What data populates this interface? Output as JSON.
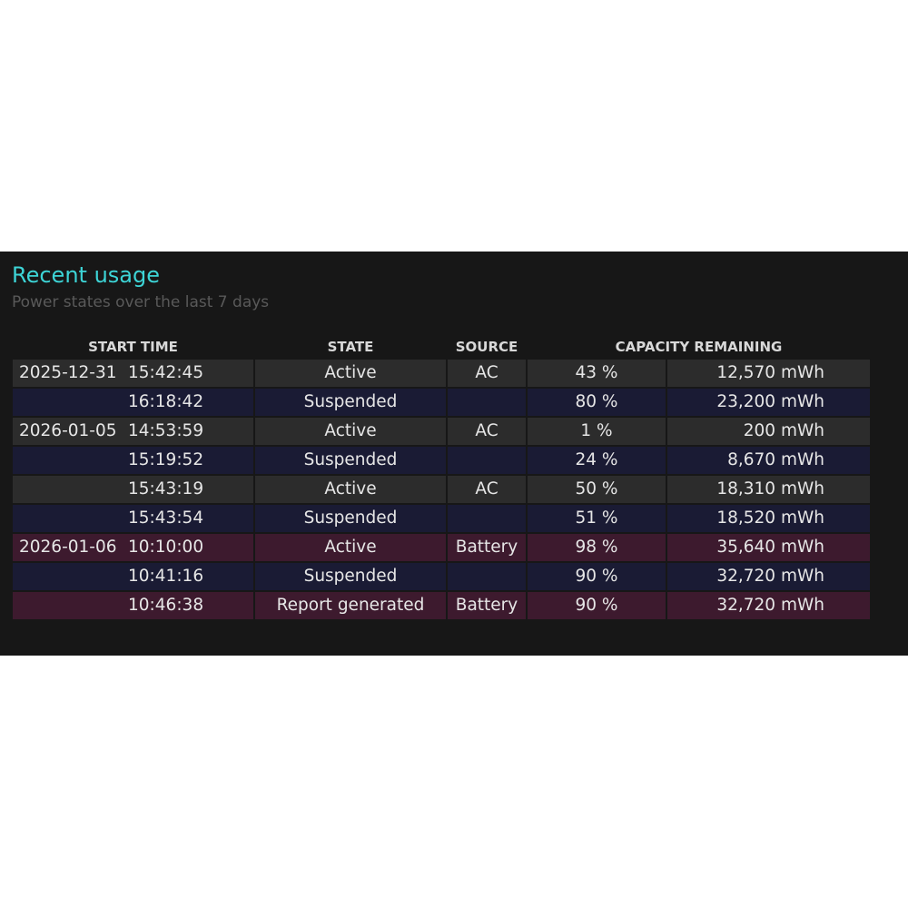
{
  "section": {
    "title": "Recent usage",
    "subtitle": "Power states over the last 7 days"
  },
  "table": {
    "headers": [
      "START TIME",
      "STATE",
      "SOURCE",
      "CAPACITY REMAINING"
    ],
    "row_colors": {
      "ac": "#2c2c2c",
      "suspended": "#1a1b34",
      "battery": "#3d1a2e"
    },
    "rows": [
      {
        "date": "2025-12-31",
        "time": "15:42:45",
        "state": "Active",
        "source": "AC",
        "percent": "43 %",
        "capacity": "12,570 mWh",
        "kind": "ac"
      },
      {
        "date": "",
        "time": "16:18:42",
        "state": "Suspended",
        "source": "",
        "percent": "80 %",
        "capacity": "23,200 mWh",
        "kind": "suspended"
      },
      {
        "date": "2026-01-05",
        "time": "14:53:59",
        "state": "Active",
        "source": "AC",
        "percent": "1 %",
        "capacity": "200 mWh",
        "kind": "ac"
      },
      {
        "date": "",
        "time": "15:19:52",
        "state": "Suspended",
        "source": "",
        "percent": "24 %",
        "capacity": "8,670 mWh",
        "kind": "suspended"
      },
      {
        "date": "",
        "time": "15:43:19",
        "state": "Active",
        "source": "AC",
        "percent": "50 %",
        "capacity": "18,310 mWh",
        "kind": "ac"
      },
      {
        "date": "",
        "time": "15:43:54",
        "state": "Suspended",
        "source": "",
        "percent": "51 %",
        "capacity": "18,520 mWh",
        "kind": "suspended"
      },
      {
        "date": "2026-01-06",
        "time": "10:10:00",
        "state": "Active",
        "source": "Battery",
        "percent": "98 %",
        "capacity": "35,640 mWh",
        "kind": "battery"
      },
      {
        "date": "",
        "time": "10:41:16",
        "state": "Suspended",
        "source": "",
        "percent": "90 %",
        "capacity": "32,720 mWh",
        "kind": "suspended"
      },
      {
        "date": "",
        "time": "10:46:38",
        "state": "Report generated",
        "source": "Battery",
        "percent": "90 %",
        "capacity": "32,720 mWh",
        "kind": "battery"
      }
    ]
  }
}
